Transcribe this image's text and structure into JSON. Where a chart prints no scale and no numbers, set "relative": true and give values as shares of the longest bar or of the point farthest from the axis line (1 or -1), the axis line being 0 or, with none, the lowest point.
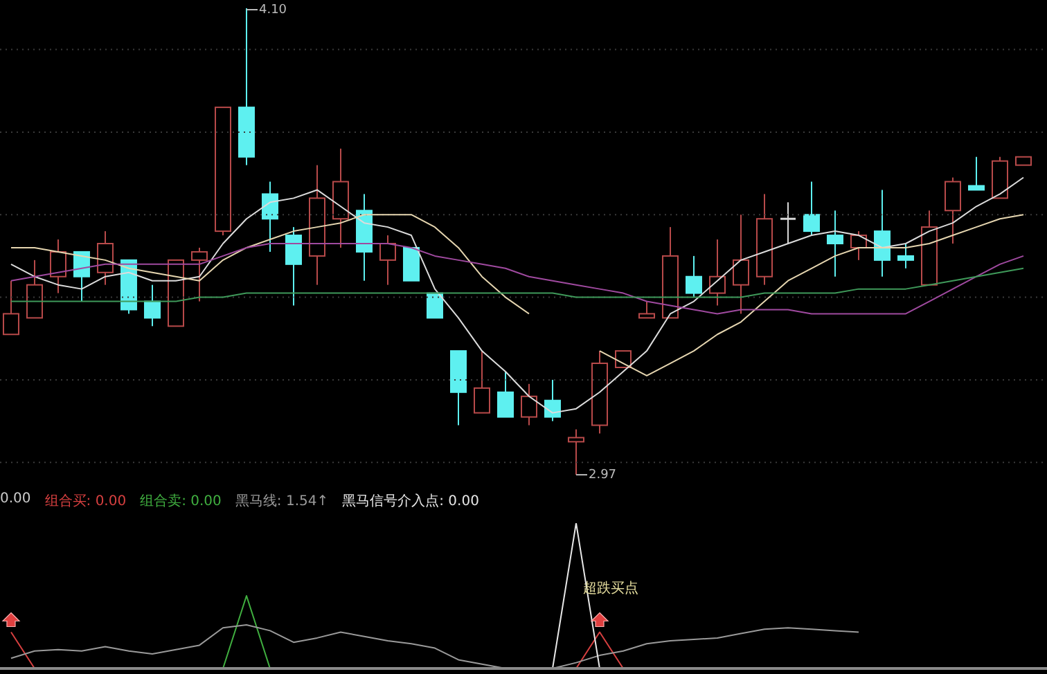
{
  "chart_data": [
    {
      "type": "candlestick",
      "categories": [
        null,
        null,
        null,
        null,
        null,
        null,
        null,
        null,
        null,
        null,
        null,
        null,
        null,
        null,
        null,
        null,
        null,
        null,
        null,
        null,
        null,
        null,
        null,
        null,
        null,
        null,
        null,
        null,
        null,
        null,
        null,
        null,
        null,
        null,
        null,
        null,
        null,
        null,
        null,
        null,
        null,
        null,
        null,
        null
      ],
      "ohlc": [
        [
          3.31,
          3.44,
          3.31,
          3.36
        ],
        [
          3.35,
          3.49,
          3.35,
          3.43
        ],
        [
          3.45,
          3.54,
          3.41,
          3.51
        ],
        [
          3.51,
          3.51,
          3.39,
          3.45
        ],
        [
          3.46,
          3.56,
          3.43,
          3.53
        ],
        [
          3.49,
          3.49,
          3.36,
          3.37
        ],
        [
          3.39,
          3.43,
          3.33,
          3.35
        ],
        [
          3.33,
          3.49,
          3.33,
          3.49
        ],
        [
          3.49,
          3.52,
          3.39,
          3.51
        ],
        [
          3.56,
          3.86,
          3.55,
          3.86
        ],
        [
          3.86,
          4.1,
          3.72,
          3.74
        ],
        [
          3.65,
          3.68,
          3.51,
          3.59
        ],
        [
          3.55,
          3.57,
          3.38,
          3.48
        ],
        [
          3.5,
          3.72,
          3.43,
          3.64
        ],
        [
          3.59,
          3.76,
          3.52,
          3.68
        ],
        [
          3.61,
          3.65,
          3.44,
          3.51
        ],
        [
          3.49,
          3.55,
          3.43,
          3.53
        ],
        [
          3.52,
          3.52,
          3.44,
          3.44
        ],
        [
          3.41,
          3.41,
          3.35,
          3.35
        ],
        [
          3.27,
          3.27,
          3.09,
          3.17
        ],
        [
          3.12,
          3.27,
          3.12,
          3.18
        ],
        [
          3.17,
          3.22,
          3.11,
          3.11
        ],
        [
          3.11,
          3.19,
          3.09,
          3.16
        ],
        [
          3.15,
          3.2,
          3.1,
          3.11
        ],
        [
          3.05,
          3.08,
          2.97,
          3.06
        ],
        [
          3.09,
          3.27,
          3.07,
          3.24
        ],
        [
          3.23,
          3.27,
          3.23,
          3.27
        ],
        [
          3.35,
          3.39,
          3.35,
          3.36
        ],
        [
          3.35,
          3.57,
          3.35,
          3.5
        ],
        [
          3.45,
          3.5,
          3.4,
          3.41
        ],
        [
          3.41,
          3.54,
          3.38,
          3.45
        ],
        [
          3.43,
          3.6,
          3.36,
          3.49
        ],
        [
          3.45,
          3.65,
          3.43,
          3.59
        ],
        [
          3.59,
          3.63,
          3.53,
          3.59
        ],
        [
          3.6,
          3.68,
          3.55,
          3.56
        ],
        [
          3.55,
          3.61,
          3.45,
          3.53
        ],
        [
          3.52,
          3.56,
          3.49,
          3.55
        ],
        [
          3.56,
          3.66,
          3.45,
          3.49
        ],
        [
          3.5,
          3.53,
          3.47,
          3.49
        ],
        [
          3.43,
          3.61,
          3.43,
          3.57
        ],
        [
          3.61,
          3.69,
          3.53,
          3.68
        ],
        [
          3.67,
          3.74,
          3.66,
          3.66
        ],
        [
          3.64,
          3.74,
          3.64,
          3.73
        ],
        [
          3.72,
          3.74,
          3.72,
          3.74
        ]
      ],
      "colors": [
        "#b84a4a",
        "#b84a4a",
        "#b84a4a",
        "#5ef0f0",
        "#b84a4a",
        "#5ef0f0",
        "#5ef0f0",
        "#b84a4a",
        "#b84a4a",
        "#b84a4a",
        "#5ef0f0",
        "#5ef0f0",
        "#5ef0f0",
        "#b84a4a",
        "#b84a4a",
        "#5ef0f0",
        "#b84a4a",
        "#5ef0f0",
        "#5ef0f0",
        "#5ef0f0",
        "#b84a4a",
        "#5ef0f0",
        "#b84a4a",
        "#5ef0f0",
        "#b84a4a",
        "#b84a4a",
        "#b84a4a",
        "#b84a4a",
        "#b84a4a",
        "#5ef0f0",
        "#b84a4a",
        "#b84a4a",
        "#b84a4a",
        "#d8d8d8",
        "#5ef0f0",
        "#5ef0f0",
        "#b84a4a",
        "#5ef0f0",
        "#5ef0f0",
        "#b84a4a",
        "#b84a4a",
        "#5ef0f0",
        "#b84a4a",
        "#b84a4a"
      ],
      "series": [
        {
          "type": "line",
          "color": "#dcdcdc",
          "values": [
            3.48,
            3.45,
            3.43,
            3.42,
            3.45,
            3.46,
            3.44,
            3.44,
            3.45,
            3.53,
            3.59,
            3.63,
            3.64,
            3.66,
            3.62,
            3.58,
            3.57,
            3.55,
            3.42,
            3.35,
            3.27,
            3.22,
            3.16,
            3.12,
            3.13,
            3.17,
            3.22,
            3.27,
            3.36,
            3.39,
            3.44,
            3.49,
            3.51,
            3.53,
            3.55,
            3.56,
            3.55,
            3.52,
            3.53,
            3.56,
            3.58,
            3.62,
            3.65,
            3.69
          ]
        },
        {
          "type": "line",
          "color": "#e6d6b0",
          "values": [
            3.52,
            3.52,
            3.51,
            3.5,
            3.49,
            3.47,
            3.46,
            3.45,
            3.44,
            3.49,
            3.52,
            3.54,
            3.56,
            3.57,
            3.58,
            3.6,
            3.6,
            3.6,
            3.57,
            3.52,
            3.45,
            3.4,
            3.36,
            null,
            null,
            3.27,
            3.24,
            3.21,
            3.24,
            3.27,
            3.31,
            3.34,
            3.39,
            3.44,
            3.47,
            3.5,
            3.52,
            3.52,
            3.52,
            3.53,
            3.55,
            3.57,
            3.59,
            3.6
          ]
        },
        {
          "type": "line",
          "color": "#a04aa0",
          "values": [
            3.44,
            3.45,
            3.46,
            3.47,
            3.48,
            3.48,
            3.48,
            3.48,
            3.48,
            3.5,
            3.52,
            3.53,
            3.53,
            3.53,
            3.53,
            3.53,
            3.53,
            3.52,
            3.5,
            3.49,
            3.48,
            3.47,
            3.45,
            3.44,
            3.43,
            3.42,
            3.41,
            3.39,
            3.38,
            3.37,
            3.36,
            3.37,
            3.37,
            3.37,
            3.36,
            3.36,
            3.36,
            3.36,
            3.36,
            3.39,
            3.42,
            3.45,
            3.48,
            3.5
          ]
        },
        {
          "type": "line",
          "color": "#3f9a5a",
          "values": [
            3.39,
            3.39,
            3.39,
            3.39,
            3.39,
            3.39,
            3.39,
            3.39,
            3.4,
            3.4,
            3.41,
            3.41,
            3.41,
            3.41,
            3.41,
            3.41,
            3.41,
            3.41,
            3.41,
            3.41,
            3.41,
            3.41,
            3.41,
            3.41,
            3.4,
            3.4,
            3.4,
            3.4,
            3.4,
            3.4,
            3.4,
            3.4,
            3.41,
            3.41,
            3.41,
            3.41,
            3.42,
            3.42,
            3.42,
            3.43,
            3.44,
            3.45,
            3.46,
            3.47
          ]
        }
      ],
      "ylim": [
        2.94,
        4.12
      ],
      "yticks": [
        {
          "value": 3.0,
          "label": null
        },
        {
          "value": 3.2,
          "label": null
        },
        {
          "value": 3.4,
          "label": null
        },
        {
          "value": 3.6,
          "label": null
        },
        {
          "value": 3.8,
          "label": null
        },
        {
          "value": 4.0,
          "label": null
        }
      ],
      "grid": "y",
      "tick_labels": false,
      "annotations": [
        "4.10",
        "2.97"
      ]
    },
    {
      "type": "line",
      "relative": true,
      "legend": "top left",
      "categories": [
        null,
        null,
        null,
        null,
        null,
        null,
        null,
        null,
        null,
        null,
        null,
        null,
        null,
        null,
        null,
        null,
        null,
        null,
        null,
        null,
        null,
        null,
        null,
        null,
        null,
        null,
        null,
        null,
        null,
        null,
        null,
        null,
        null,
        null,
        null,
        null,
        null,
        null,
        null,
        null,
        null,
        null,
        null,
        null
      ],
      "annotations": [
        "0.00",
        "超跌买点"
      ],
      "series": [
        {
          "name": "组合买: 0.00",
          "color": "#d84040",
          "values": [
            0.25,
            0,
            null,
            null,
            null,
            null,
            null,
            null,
            null,
            null,
            null,
            null,
            null,
            null,
            null,
            null,
            null,
            null,
            null,
            null,
            null,
            null,
            null,
            null,
            0,
            0.25,
            0,
            null,
            null,
            null,
            null,
            null,
            null,
            null,
            null,
            null,
            null,
            null,
            null,
            null,
            null,
            null,
            null,
            null
          ]
        },
        {
          "name": "组合卖: 0.00",
          "color": "#40b040",
          "values": [
            null,
            null,
            null,
            null,
            null,
            null,
            null,
            null,
            null,
            0,
            0.5,
            0,
            null,
            null,
            null,
            null,
            null,
            null,
            null,
            null,
            null,
            null,
            null,
            null,
            null,
            null,
            null,
            null,
            null,
            null,
            null,
            null,
            null,
            null,
            null,
            null,
            null,
            null,
            null,
            null,
            null,
            null,
            null,
            null
          ]
        },
        {
          "name": "黑马线: 1.54↑",
          "color": "#9a9a9a",
          "values": [
            0.07,
            0.12,
            0.13,
            0.12,
            0.15,
            0.12,
            0.1,
            0.13,
            0.16,
            0.28,
            0.3,
            0.26,
            0.18,
            0.21,
            0.25,
            0.22,
            0.19,
            0.17,
            0.14,
            0.06,
            0.03,
            0,
            0,
            0,
            0.04,
            0.09,
            0.12,
            0.17,
            0.19,
            0.2,
            0.21,
            0.24,
            0.27,
            0.28,
            0.27,
            0.26,
            0.25,
            null,
            null,
            null,
            null,
            null,
            null,
            null
          ]
        },
        {
          "name": "黑马信号介入点: 0.00",
          "color": "#e8e8e8",
          "values": [
            null,
            null,
            null,
            null,
            null,
            null,
            null,
            null,
            null,
            null,
            null,
            null,
            null,
            null,
            null,
            null,
            null,
            null,
            null,
            null,
            null,
            null,
            null,
            0,
            1,
            0,
            null,
            null,
            null,
            null,
            null,
            null,
            null,
            null,
            null,
            null,
            null,
            null,
            null,
            null,
            null,
            null,
            null,
            null
          ]
        }
      ]
    }
  ]
}
